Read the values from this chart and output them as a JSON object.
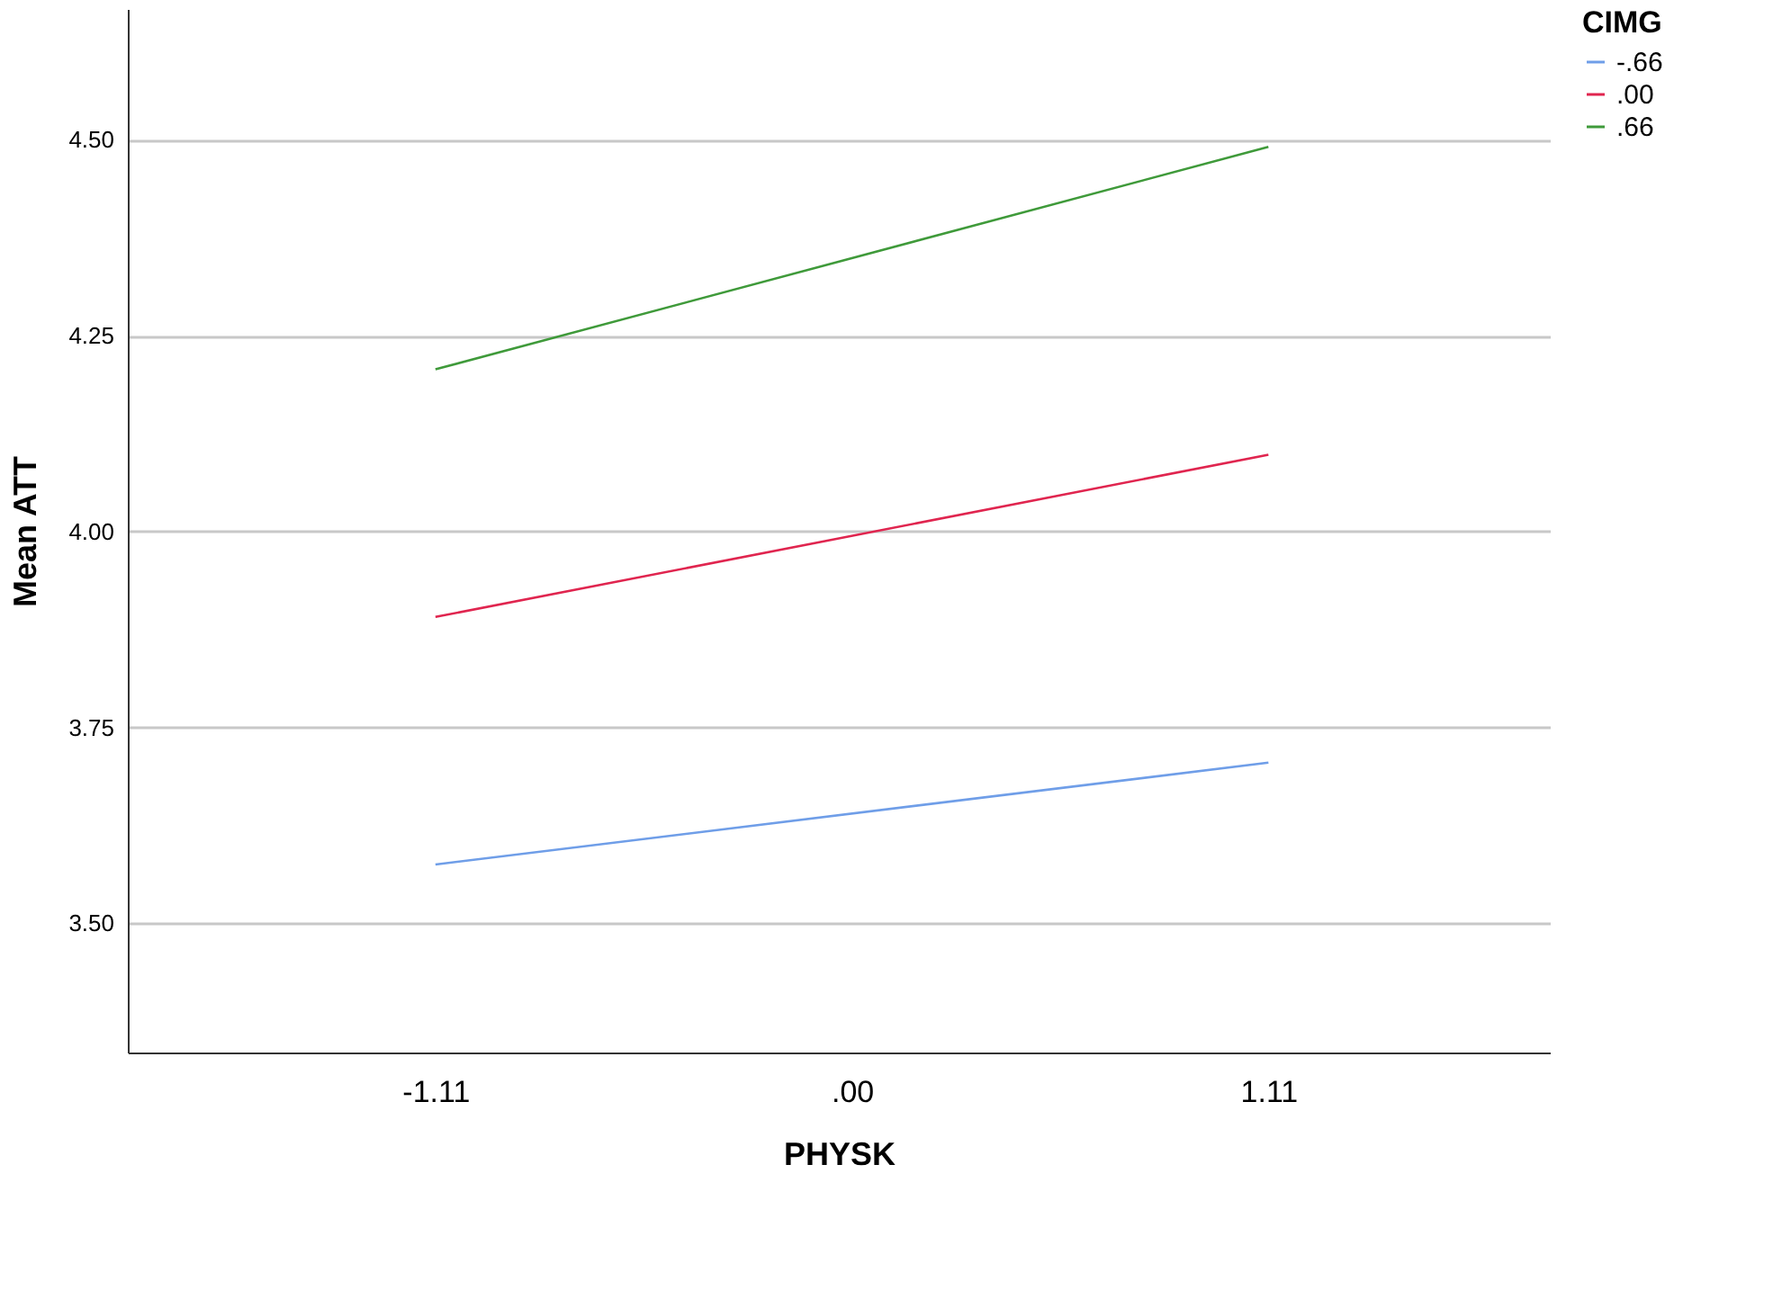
{
  "chart_data": {
    "type": "line",
    "xlabel": "PHYSK",
    "ylabel": "Mean ATT",
    "legend_title": "CIMG",
    "x": [
      -1.11,
      1.11
    ],
    "series": [
      {
        "name": "-.66",
        "color": "#6f9ee8",
        "values": [
          3.575,
          3.705
        ]
      },
      {
        "name": ".00",
        "color": "#e0254f",
        "values": [
          3.891,
          4.098
        ]
      },
      {
        "name": ".66",
        "color": "#3f9a3a",
        "values": [
          4.207,
          4.491
        ]
      }
    ],
    "xlim": [
      -1.93,
      1.86
    ],
    "xticks": [
      {
        "value": -1.11,
        "label": "-1.11"
      },
      {
        "value": 0,
        "label": ".00"
      },
      {
        "value": 1.11,
        "label": "1.11"
      }
    ],
    "ylim": [
      3.335,
      4.667
    ],
    "yticks": [
      {
        "value": 3.5,
        "label": "3.50"
      },
      {
        "value": 3.75,
        "label": "3.75"
      },
      {
        "value": 4.0,
        "label": "4.00"
      },
      {
        "value": 4.25,
        "label": "4.25"
      },
      {
        "value": 4.5,
        "label": "4.50"
      }
    ],
    "grid": "y",
    "legend": "top right",
    "marker": "none",
    "line_style": "solid"
  }
}
